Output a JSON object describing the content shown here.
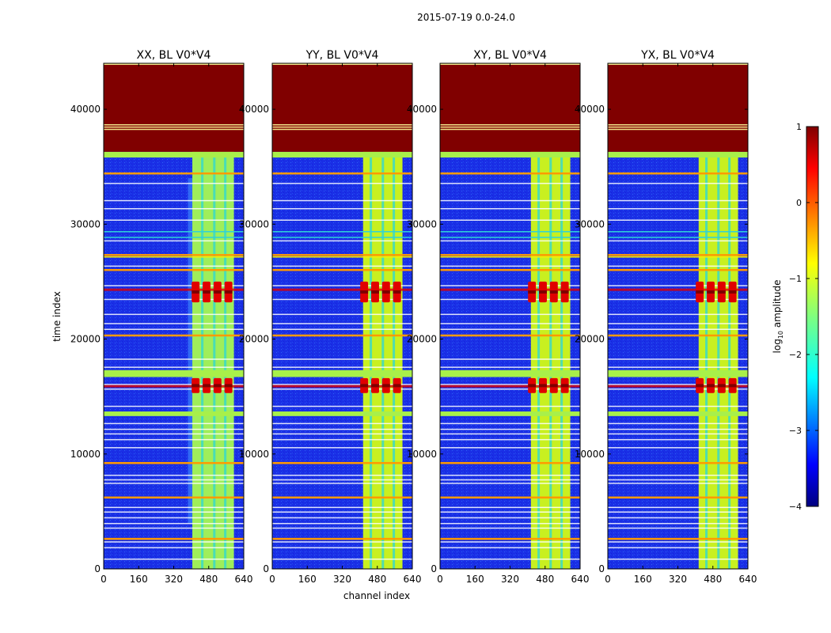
{
  "figure": {
    "suptitle": "2015-07-19 0.0-24.0",
    "xlabel": "channel index",
    "ylabel": "time index",
    "colorbar_label_prefix": "log",
    "colorbar_label_sub": "10",
    "colorbar_label_suffix": " amplitude"
  },
  "colors": {
    "saturated": "#800000",
    "background": "#1a2fe6",
    "band": "#a8f04a",
    "stripe_orange": "#ff9a00",
    "stripe_white": "#ffffff",
    "stripe_yellow": "#f5f000",
    "hot": "#e00000",
    "cold_dip": "#2fd2d8"
  },
  "chart_data": [
    {
      "type": "heatmap",
      "title": "XX, BL V0*V4",
      "xlim": [
        0,
        640
      ],
      "ylim": [
        0,
        44000
      ],
      "xticks": [
        0,
        160,
        320,
        480,
        640
      ],
      "yticks": [
        0,
        10000,
        20000,
        30000,
        40000
      ],
      "tick_labels_x": [
        "0",
        "160",
        "320",
        "480",
        "640"
      ],
      "tick_labels_y": [
        "0",
        "10000",
        "20000",
        "30000",
        "40000"
      ]
    },
    {
      "type": "heatmap",
      "title": "YY, BL V0*V4",
      "xlim": [
        0,
        640
      ],
      "ylim": [
        0,
        44000
      ],
      "xticks": [
        0,
        160,
        320,
        480,
        640
      ],
      "yticks": [
        0,
        10000,
        20000,
        30000,
        40000
      ],
      "tick_labels_x": [
        "0",
        "160",
        "320",
        "480",
        "640"
      ],
      "tick_labels_y": [
        "0",
        "10000",
        "20000",
        "30000",
        "40000"
      ]
    },
    {
      "type": "heatmap",
      "title": "XY, BL V0*V4",
      "xlim": [
        0,
        640
      ],
      "ylim": [
        0,
        44000
      ],
      "xticks": [
        0,
        160,
        320,
        480,
        640
      ],
      "yticks": [
        0,
        10000,
        20000,
        30000,
        40000
      ],
      "tick_labels_x": [
        "0",
        "160",
        "320",
        "480",
        "640"
      ],
      "tick_labels_y": [
        "0",
        "10000",
        "20000",
        "30000",
        "40000"
      ]
    },
    {
      "type": "heatmap",
      "title": "YX, BL V0*V4",
      "xlim": [
        0,
        640
      ],
      "ylim": [
        0,
        44000
      ],
      "xticks": [
        0,
        160,
        320,
        480,
        640
      ],
      "yticks": [
        0,
        10000,
        20000,
        30000,
        40000
      ],
      "tick_labels_x": [
        "0",
        "160",
        "320",
        "480",
        "640"
      ],
      "tick_labels_y": [
        "0",
        "10000",
        "20000",
        "30000",
        "40000"
      ]
    }
  ],
  "structure": {
    "saturated_top_rows": [
      36300,
      44000
    ],
    "saturated_thin_lines": [
      38300,
      38500,
      38700
    ],
    "flag_band_rows": [
      [
        35800,
        36300
      ],
      [
        16700,
        17300
      ],
      [
        13300,
        13700
      ]
    ],
    "bright_channel_range": [
      405,
      595
    ],
    "channel_gaps": [
      445,
      500,
      550
    ],
    "hot_row_ranges": [
      [
        23200,
        25000
      ],
      [
        15300,
        16600
      ]
    ],
    "hot_cells": [
      420,
      470,
      520,
      570
    ],
    "horizontal_stripes": [
      {
        "t": 34500,
        "k": "orange"
      },
      {
        "t": 33600,
        "k": "white"
      },
      {
        "t": 32100,
        "k": "white"
      },
      {
        "t": 31400,
        "k": "white"
      },
      {
        "t": 30400,
        "k": "white"
      },
      {
        "t": 29400,
        "k": "cyan"
      },
      {
        "t": 28900,
        "k": "cyan"
      },
      {
        "t": 28600,
        "k": "white"
      },
      {
        "t": 27400,
        "k": "orange"
      },
      {
        "t": 27200,
        "k": "yellow"
      },
      {
        "t": 26400,
        "k": "white"
      },
      {
        "t": 26100,
        "k": "orange"
      },
      {
        "t": 24700,
        "k": "white"
      },
      {
        "t": 23500,
        "k": "white"
      },
      {
        "t": 22200,
        "k": "white"
      },
      {
        "t": 21400,
        "k": "white"
      },
      {
        "t": 20900,
        "k": "white"
      },
      {
        "t": 20400,
        "k": "orange"
      },
      {
        "t": 18300,
        "k": "white"
      },
      {
        "t": 17600,
        "k": "white"
      },
      {
        "t": 16100,
        "k": "white"
      },
      {
        "t": 15700,
        "k": "white"
      },
      {
        "t": 14200,
        "k": "white"
      },
      {
        "t": 12700,
        "k": "white"
      },
      {
        "t": 12200,
        "k": "white"
      },
      {
        "t": 11800,
        "k": "white"
      },
      {
        "t": 11300,
        "k": "white"
      },
      {
        "t": 10600,
        "k": "white"
      },
      {
        "t": 9300,
        "k": "orange"
      },
      {
        "t": 8200,
        "k": "white"
      },
      {
        "t": 7800,
        "k": "white"
      },
      {
        "t": 7500,
        "k": "white"
      },
      {
        "t": 6300,
        "k": "orange"
      },
      {
        "t": 5400,
        "k": "white"
      },
      {
        "t": 5000,
        "k": "white"
      },
      {
        "t": 4500,
        "k": "white"
      },
      {
        "t": 4000,
        "k": "white"
      },
      {
        "t": 3600,
        "k": "white"
      },
      {
        "t": 2700,
        "k": "orange"
      },
      {
        "t": 2400,
        "k": "white"
      },
      {
        "t": 1900,
        "k": "white"
      },
      {
        "t": 900,
        "k": "white"
      }
    ]
  },
  "colorbar": {
    "min": -4,
    "max": 1,
    "ticks": [
      1,
      0,
      -1,
      -2,
      -3,
      -4
    ],
    "tick_labels": [
      "1",
      "0",
      "−1",
      "−2",
      "−3",
      "−4"
    ],
    "colormap": "jet"
  }
}
